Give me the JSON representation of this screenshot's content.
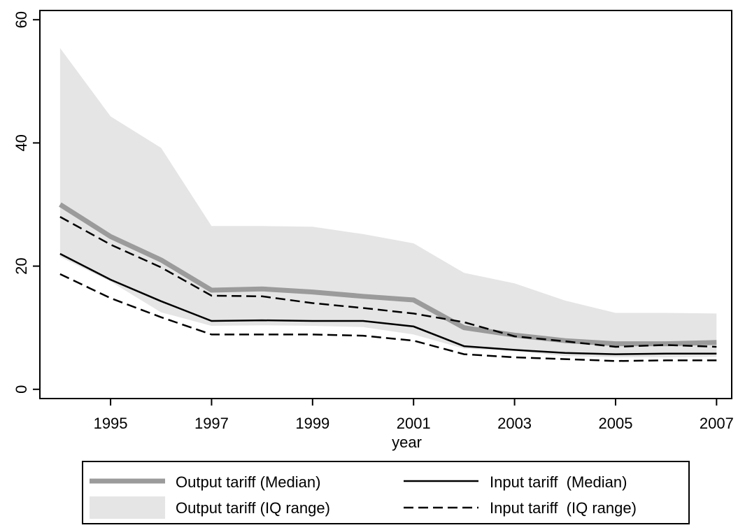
{
  "chart_data": {
    "type": "line",
    "xlabel": "year",
    "ylabel": "",
    "xlim": [
      1993.6,
      2007.3
    ],
    "ylim": [
      -1.5,
      61.5
    ],
    "x_ticks": [
      1995,
      1997,
      1999,
      2001,
      2003,
      2005,
      2007
    ],
    "y_ticks": [
      0,
      20,
      40,
      60
    ],
    "x": [
      1994,
      1995,
      1996,
      1997,
      1998,
      1999,
      2000,
      2001,
      2002,
      2003,
      2004,
      2005,
      2006,
      2007
    ],
    "series": [
      {
        "name": "Output tariff (Median)",
        "style": "thick-gray",
        "color": "#9b9b9b",
        "values": [
          30.0,
          24.8,
          21.0,
          16.1,
          16.3,
          15.8,
          15.1,
          14.5,
          10.0,
          8.8,
          7.9,
          7.4,
          7.4,
          7.6
        ]
      },
      {
        "name": "Output tariff (IQ range)",
        "style": "band",
        "color": "#e5e5e5",
        "upper": [
          55.4,
          44.3,
          39.2,
          26.5,
          26.5,
          26.4,
          25.2,
          23.7,
          18.9,
          17.2,
          14.4,
          12.4,
          12.4,
          12.3
        ],
        "lower": [
          21.5,
          17.5,
          12.5,
          10.3,
          10.4,
          10.3,
          10.1,
          8.9,
          6.6,
          6.2,
          5.4,
          5.2,
          5.2,
          5.3
        ]
      },
      {
        "name": "Input tariff  (Median)",
        "style": "solid-black",
        "color": "#000000",
        "values": [
          22.0,
          17.8,
          14.3,
          11.1,
          11.2,
          11.1,
          11.1,
          10.2,
          7.0,
          6.4,
          5.9,
          5.7,
          5.8,
          5.8
        ]
      },
      {
        "name": "Input tariff  (IQ range)",
        "style": "dashed-black",
        "color": "#000000",
        "upper": [
          28.0,
          23.5,
          19.8,
          15.2,
          15.1,
          14.0,
          13.2,
          12.3,
          10.9,
          8.6,
          7.8,
          6.9,
          7.2,
          6.9
        ],
        "lower": [
          18.7,
          14.8,
          11.7,
          8.9,
          8.9,
          8.9,
          8.7,
          7.9,
          5.7,
          5.2,
          4.9,
          4.6,
          4.7,
          4.7
        ]
      }
    ],
    "legend": {
      "placement": "bottom",
      "entries": [
        "Output tariff (Median)",
        "Input tariff  (Median)",
        "Output tariff (IQ range)",
        "Input tariff  (IQ range)"
      ]
    },
    "grid": false
  }
}
